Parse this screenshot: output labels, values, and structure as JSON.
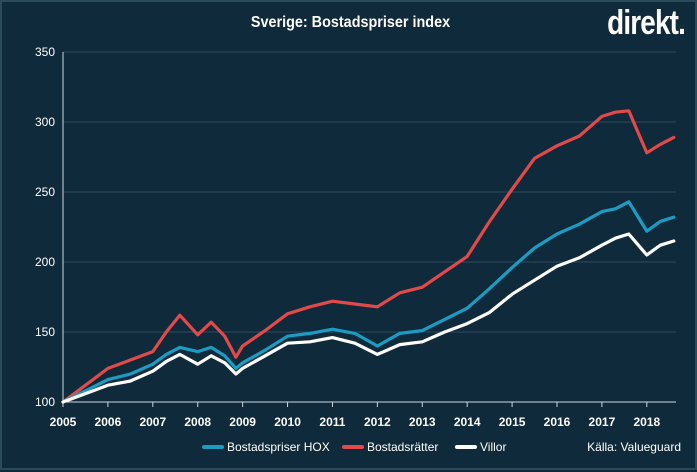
{
  "header": {
    "title": "Sverige: Bostadspriser index",
    "logo": "direkt."
  },
  "source": "Källa: Valueguard",
  "colors": {
    "background": "#0f2a3b",
    "grid": "#2e4b5e",
    "hox": "#1a9cc4",
    "bostadsratter": "#e24a4a",
    "villor": "#ffffff"
  },
  "chart_data": {
    "type": "line",
    "title": "Sverige: Bostadspriser index",
    "xlabel": "",
    "ylabel": "",
    "xlim": [
      2005,
      2018.65
    ],
    "ylim": [
      100,
      350
    ],
    "yticks": [
      100,
      150,
      200,
      250,
      300,
      350
    ],
    "xticks": [
      "2005",
      "2006",
      "2007",
      "2008",
      "2009",
      "2010",
      "2011",
      "2012",
      "2013",
      "2014",
      "2015",
      "2016",
      "2017",
      "2018"
    ],
    "grid": "horizontal",
    "legend": "bottom",
    "x": [
      2005.0,
      2005.5,
      2006.0,
      2006.5,
      2007.0,
      2007.3,
      2007.6,
      2008.0,
      2008.3,
      2008.6,
      2008.85,
      2009.0,
      2009.5,
      2010.0,
      2010.5,
      2011.0,
      2011.5,
      2012.0,
      2012.5,
      2013.0,
      2013.5,
      2014.0,
      2014.5,
      2015.0,
      2015.5,
      2016.0,
      2016.5,
      2017.0,
      2017.3,
      2017.6,
      2018.0,
      2018.3,
      2018.6
    ],
    "series": [
      {
        "name": "Bostadspriser HOX",
        "color": "#1a9cc4",
        "values": [
          100,
          108,
          116,
          120,
          127,
          134,
          139,
          136,
          139,
          133,
          124,
          128,
          137,
          147,
          149,
          152,
          149,
          140,
          149,
          151,
          159,
          167,
          181,
          196,
          210,
          220,
          227,
          236,
          238,
          243,
          222,
          229,
          232
        ]
      },
      {
        "name": "Bostadsrätter",
        "color": "#e24a4a",
        "values": [
          100,
          112,
          124,
          130,
          136,
          150,
          162,
          148,
          157,
          147,
          132,
          140,
          151,
          163,
          168,
          172,
          170,
          168,
          178,
          182,
          193,
          204,
          229,
          252,
          274,
          283,
          290,
          304,
          307,
          308,
          278,
          284,
          289
        ]
      },
      {
        "name": "Villor",
        "color": "#ffffff",
        "values": [
          100,
          106,
          112,
          115,
          122,
          129,
          134,
          127,
          133,
          128,
          120,
          124,
          133,
          142,
          143,
          146,
          142,
          134,
          141,
          143,
          150,
          156,
          164,
          177,
          187,
          197,
          203,
          212,
          217,
          220,
          205,
          212,
          215
        ]
      }
    ]
  }
}
